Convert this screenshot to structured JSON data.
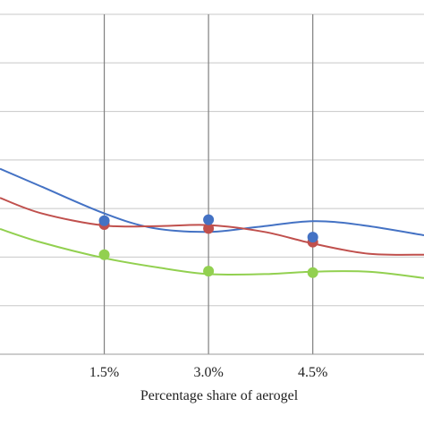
{
  "chart_data": {
    "type": "scatter",
    "xlabel": "Percentage share of aerogel",
    "categories": [
      "1.5%",
      "3.0%",
      "4.5%"
    ],
    "x": [
      1.5,
      3.0,
      4.5
    ],
    "xlim": [
      0.0,
      6.1
    ],
    "ylim": [
      0,
      7
    ],
    "grid": true,
    "series": [
      {
        "color": "#4472C4",
        "points": [
          {
            "x": 1.5,
            "y": 2.75
          },
          {
            "x": 3.0,
            "y": 2.77
          },
          {
            "x": 4.5,
            "y": 2.41
          }
        ],
        "curve": [
          [
            0.0,
            3.82
          ],
          [
            0.6,
            3.45
          ],
          [
            1.5,
            2.9
          ],
          [
            2.2,
            2.6
          ],
          [
            3.0,
            2.52
          ],
          [
            3.7,
            2.62
          ],
          [
            4.5,
            2.74
          ],
          [
            5.2,
            2.66
          ],
          [
            6.1,
            2.45
          ]
        ]
      },
      {
        "color": "#C0504D",
        "points": [
          {
            "x": 1.5,
            "y": 2.67
          },
          {
            "x": 3.0,
            "y": 2.59
          },
          {
            "x": 4.5,
            "y": 2.31
          }
        ],
        "curve": [
          [
            0.0,
            3.22
          ],
          [
            0.6,
            2.9
          ],
          [
            1.5,
            2.65
          ],
          [
            2.3,
            2.64
          ],
          [
            3.0,
            2.66
          ],
          [
            3.8,
            2.52
          ],
          [
            4.5,
            2.28
          ],
          [
            5.3,
            2.07
          ],
          [
            6.1,
            2.05
          ]
        ]
      },
      {
        "color": "#92D050",
        "points": [
          {
            "x": 1.5,
            "y": 2.05
          },
          {
            "x": 3.0,
            "y": 1.71
          },
          {
            "x": 4.5,
            "y": 1.68
          }
        ],
        "curve": [
          [
            0.0,
            2.58
          ],
          [
            0.6,
            2.3
          ],
          [
            1.5,
            1.98
          ],
          [
            2.3,
            1.78
          ],
          [
            3.0,
            1.65
          ],
          [
            3.8,
            1.65
          ],
          [
            4.5,
            1.7
          ],
          [
            5.3,
            1.7
          ],
          [
            6.1,
            1.57
          ]
        ]
      }
    ]
  }
}
